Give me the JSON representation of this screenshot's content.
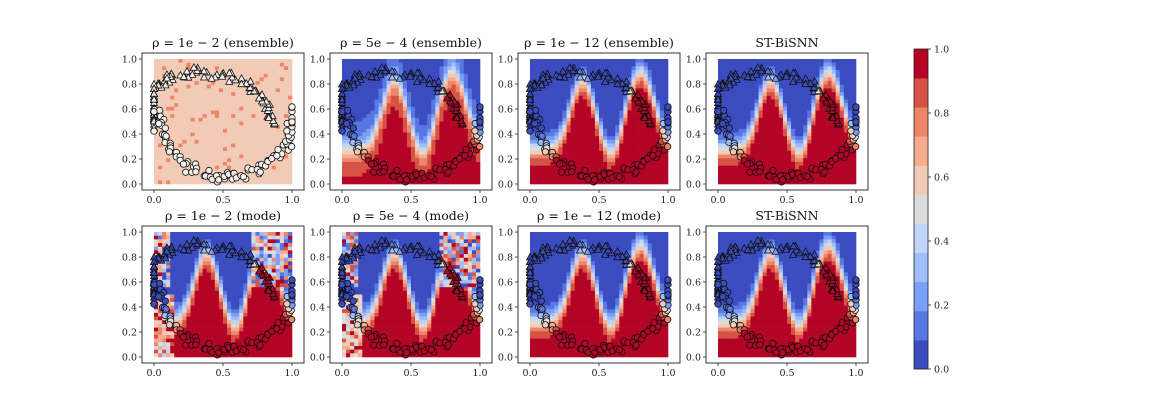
{
  "figure": {
    "x_ticks": [
      "0.0",
      "0.5",
      "1.0"
    ],
    "y_ticks": [
      "0.0",
      "0.2",
      "0.4",
      "0.6",
      "0.8",
      "1.0"
    ]
  },
  "colorbar": {
    "ticks": [
      "0.0",
      "0.2",
      "0.4",
      "0.6",
      "0.8",
      "1.0"
    ],
    "colors": [
      "#3b4cc0",
      "#5977e3",
      "#7b9ff9",
      "#9ebeff",
      "#c0d4f5",
      "#dddcdc",
      "#f2cbb7",
      "#f7ac8e",
      "#ee8468",
      "#d65244",
      "#b40426"
    ]
  },
  "chart_data": [
    {
      "type": "scatter",
      "title": "ρ = 1e − 2 (ensemble)",
      "xlim": [
        0,
        1
      ],
      "ylim": [
        0,
        1
      ],
      "background": "uniform",
      "uniform_prob": 0.58
    },
    {
      "type": "scatter",
      "title": "ρ = 5e − 4 (ensemble)",
      "xlim": [
        0,
        1
      ],
      "ylim": [
        0,
        1
      ],
      "background": "smooth"
    },
    {
      "type": "scatter",
      "title": "ρ = 1e − 12 (ensemble)",
      "xlim": [
        0,
        1
      ],
      "ylim": [
        0,
        1
      ],
      "background": "sharp"
    },
    {
      "type": "scatter",
      "title": "ST-BiSNN",
      "xlim": [
        0,
        1
      ],
      "ylim": [
        0,
        1
      ],
      "background": "sharp"
    },
    {
      "type": "scatter",
      "title": "ρ = 1e − 2 (mode)",
      "xlim": [
        0,
        1
      ],
      "ylim": [
        0,
        1
      ],
      "background": "noisy"
    },
    {
      "type": "scatter",
      "title": "ρ = 5e − 4 (mode)",
      "xlim": [
        0,
        1
      ],
      "ylim": [
        0,
        1
      ],
      "background": "noisy"
    },
    {
      "type": "scatter",
      "title": "ρ = 1e − 12 (mode)",
      "xlim": [
        0,
        1
      ],
      "ylim": [
        0,
        1
      ],
      "background": "sharp"
    },
    {
      "type": "scatter",
      "title": "ST-BiSNN",
      "xlim": [
        0,
        1
      ],
      "ylim": [
        0,
        1
      ],
      "background": "sharp"
    }
  ]
}
